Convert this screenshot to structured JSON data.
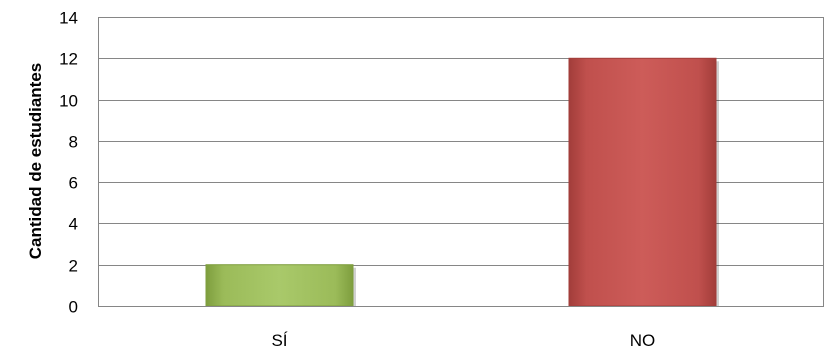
{
  "chart_data": {
    "type": "bar",
    "categories": [
      "SÍ",
      "NO"
    ],
    "values": [
      2,
      12
    ],
    "title": "",
    "xlabel": "",
    "ylabel": "Cantidad de estudiantes",
    "ylim": [
      0,
      14
    ],
    "yticks": [
      0,
      2,
      4,
      6,
      8,
      10,
      12,
      14
    ],
    "grid": true,
    "legend": false,
    "colors": {
      "bar_si": "#9BBB59",
      "bar_si_dark": "#7E9E3E",
      "bar_no": "#C0504D",
      "bar_no_dark": "#A23D3A",
      "gridline": "#868686"
    }
  }
}
